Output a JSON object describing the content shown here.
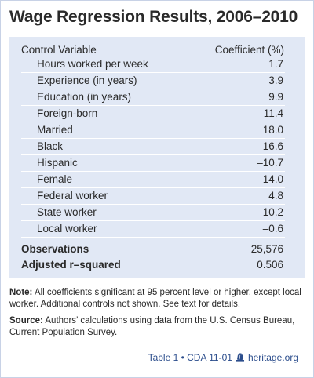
{
  "title": "Wage Regression Results, 2006–2010",
  "table": {
    "header_variable": "Control Variable",
    "header_coefficient": "Coefficient (%)",
    "rows": [
      {
        "label": "Hours worked per week",
        "value": "1.7"
      },
      {
        "label": "Experience (in years)",
        "value": "3.9"
      },
      {
        "label": "Education (in years)",
        "value": "9.9"
      },
      {
        "label": "Foreign-born",
        "value": "–11.4"
      },
      {
        "label": "Married",
        "value": "18.0"
      },
      {
        "label": "Black",
        "value": "–16.6"
      },
      {
        "label": "Hispanic",
        "value": "–10.7"
      },
      {
        "label": "Female",
        "value": "–14.0"
      },
      {
        "label": "Federal worker",
        "value": "4.8"
      },
      {
        "label": "State worker",
        "value": "–10.2"
      },
      {
        "label": "Local worker",
        "value": "–0.6"
      }
    ],
    "stats": [
      {
        "label": "Observations",
        "value": "25,576"
      },
      {
        "label": "Adjusted r–squared",
        "value": "0.506"
      }
    ]
  },
  "notes": {
    "note_label": "Note:",
    "note_text": " All coefficients significant at 95 percent level or higher, except local worker. Additional controls not shown. See text for details.",
    "source_label": "Source:",
    "source_text": " Authors’ calculations using data from the U.S. Census Bureau, Current Population Survey."
  },
  "footer": {
    "table_ref": "Table 1 • CDA 11-01",
    "site": "heritage.org"
  },
  "colors": {
    "panel_bg": "#e1e8f5",
    "footer_text": "#2b4d8c",
    "text": "#2a2a2a"
  }
}
